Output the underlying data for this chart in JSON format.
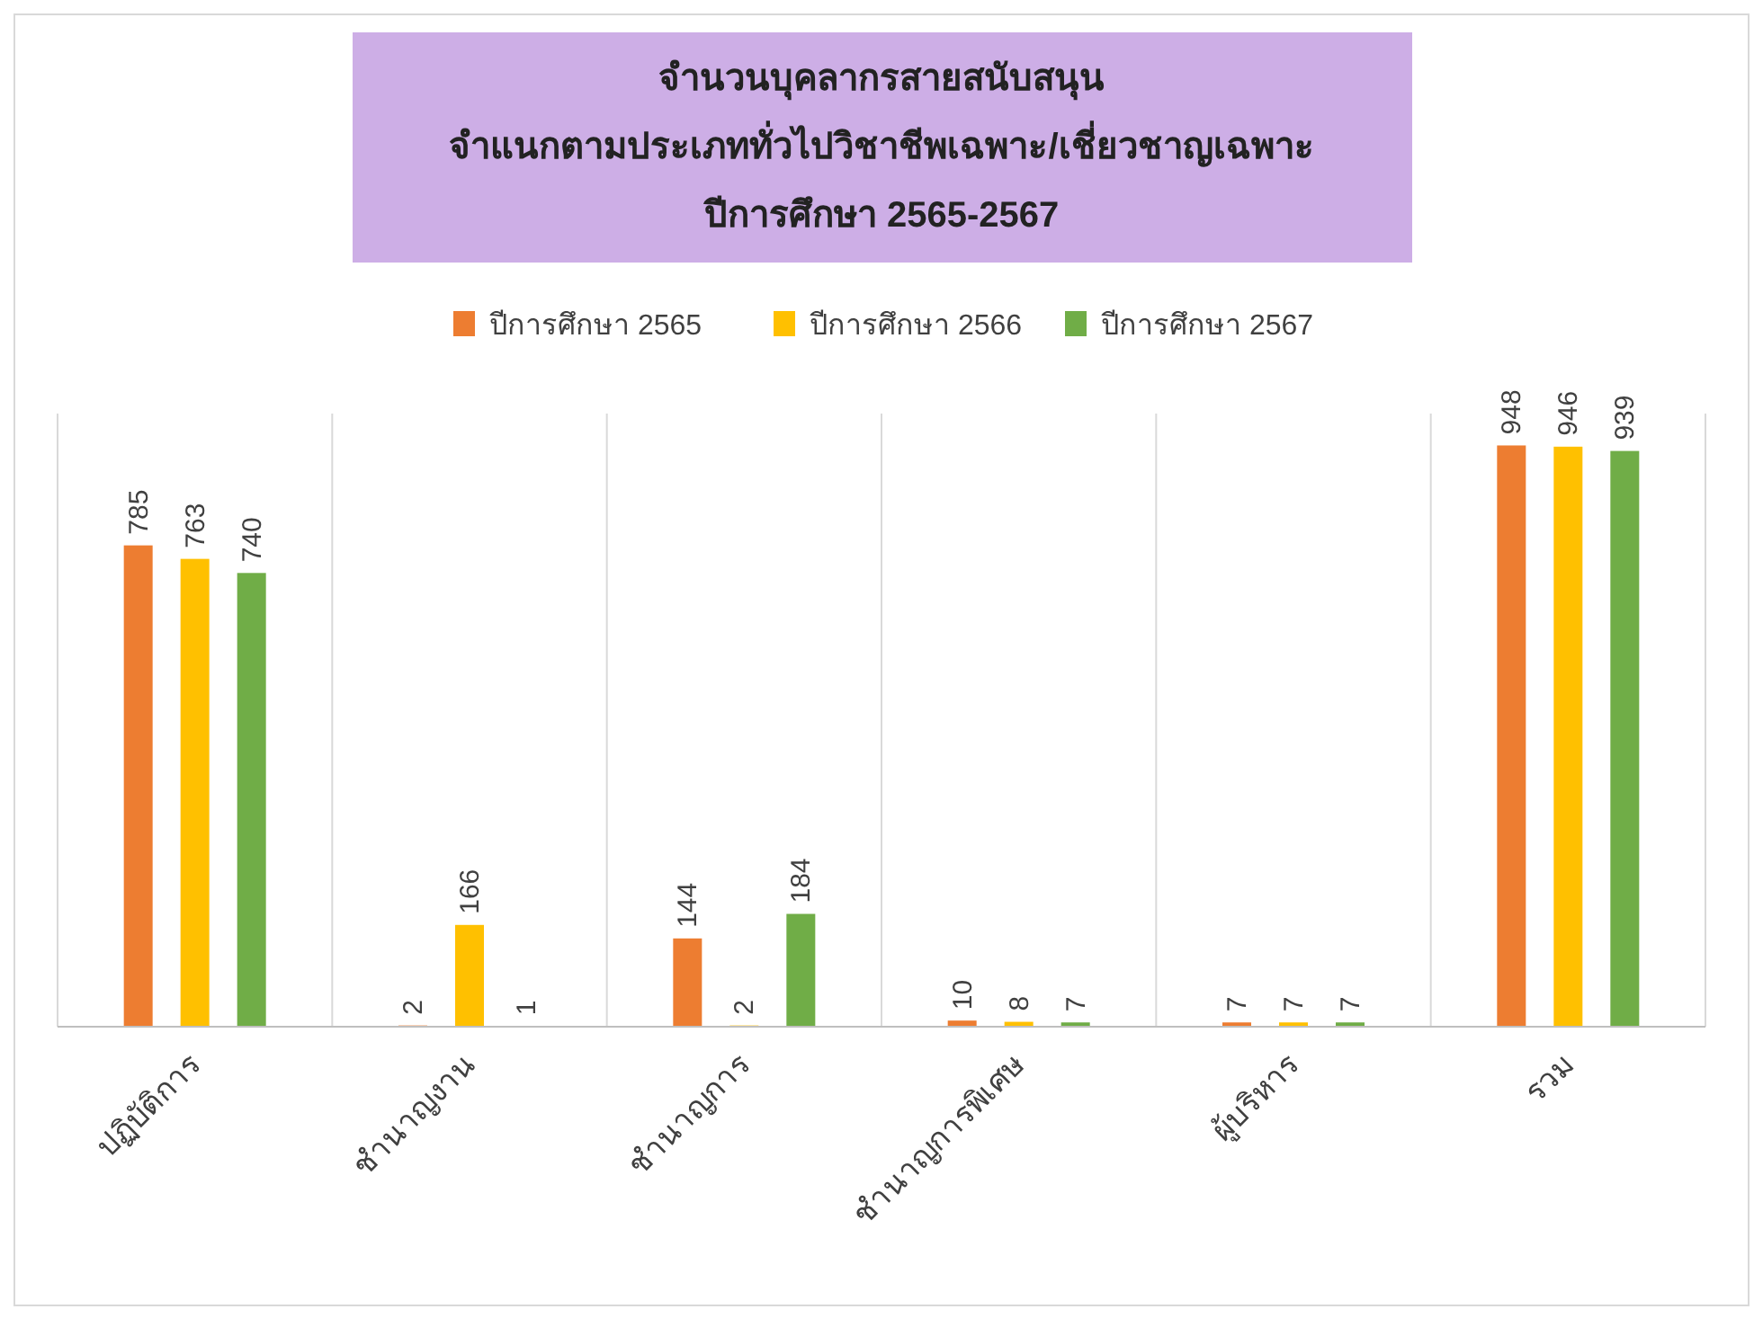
{
  "chart_data": {
    "type": "bar",
    "title": "จำนวนบุคลากรสายสนับสนุน\nจำแนกตามประเภททั่วไปวิชาชีพเฉพาะ/เชี่ยวชาญเฉพาะ\nปีการศึกษา 2565-2567",
    "categories": [
      "ปฏิบัติการ",
      "ชำนาญงาน",
      "ชำนาญการ",
      "ชำนาญการพิเศษ",
      "ผู้บริหาร",
      "รวม"
    ],
    "series": [
      {
        "name": "ปีการศึกษา 2565",
        "color": "#ed7d31",
        "values": [
          785,
          2,
          144,
          10,
          7,
          948
        ]
      },
      {
        "name": "ปีการศึกษา 2566",
        "color": "#ffc000",
        "values": [
          763,
          166,
          2,
          8,
          7,
          946
        ]
      },
      {
        "name": "ปีการศึกษา 2567",
        "color": "#70ad47",
        "values": [
          740,
          1,
          184,
          7,
          7,
          939
        ]
      }
    ],
    "ylim": [
      0,
      1000
    ],
    "data_labels": true,
    "legend": "top",
    "grid": "x"
  }
}
